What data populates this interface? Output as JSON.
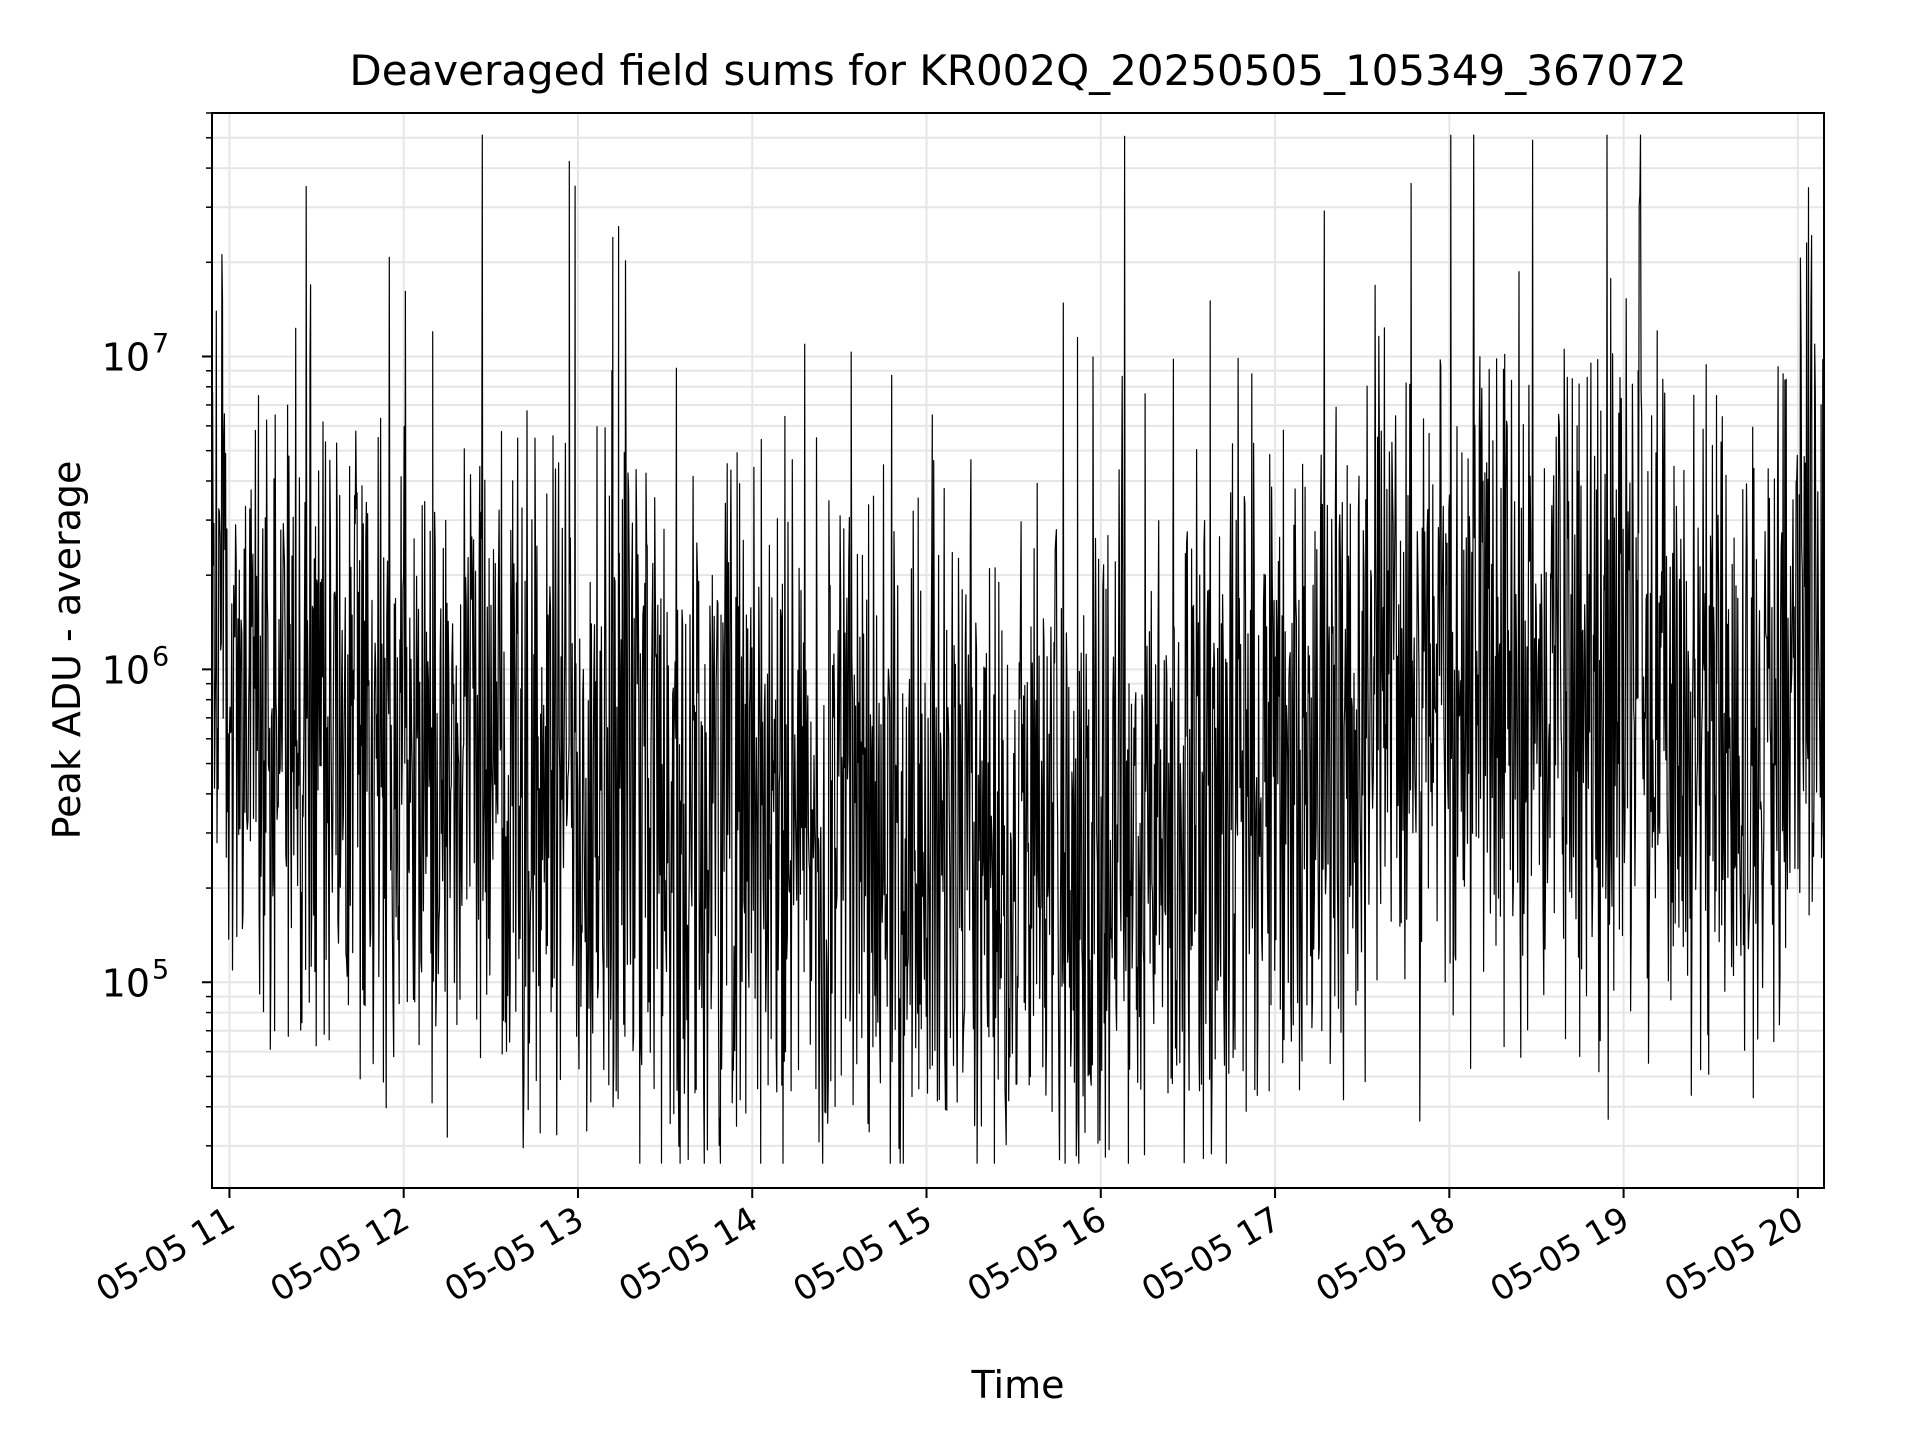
{
  "chart_data": {
    "type": "line",
    "title": "Deaveraged field sums for KR002Q_20250505_105349_367072",
    "xlabel": "Time",
    "ylabel": "Peak ADU - average",
    "yscale": "log",
    "ylim": [
      22000,
      60000000
    ],
    "xlim": [
      "2025-05-05 10:54",
      "2025-05-05 20:09"
    ],
    "grid": true,
    "line_color": "#000000",
    "x_tick_labels": [
      "05-05 11",
      "05-05 12",
      "05-05 13",
      "05-05 14",
      "05-05 15",
      "05-05 16",
      "05-05 17",
      "05-05 18",
      "05-05 19",
      "05-05 20"
    ],
    "y_tick_labels": [
      {
        "value": 100000,
        "base": "10",
        "exp": "5"
      },
      {
        "value": 1000000,
        "base": "10",
        "exp": "6"
      },
      {
        "value": 10000000,
        "base": "10",
        "exp": "7"
      }
    ],
    "series": [
      {
        "x": [
          "2025-05-05 10:54",
          "2025-05-05 11:00",
          "2025-05-05 11:15",
          "2025-05-05 11:30",
          "2025-05-05 11:45",
          "2025-05-05 12:00",
          "2025-05-05 12:30",
          "2025-05-05 13:00",
          "2025-05-05 13:30",
          "2025-05-05 14:00",
          "2025-05-05 14:30",
          "2025-05-05 15:00",
          "2025-05-05 15:30",
          "2025-05-05 16:00",
          "2025-05-05 16:30",
          "2025-05-05 17:00",
          "2025-05-05 17:30",
          "2025-05-05 18:00",
          "2025-05-05 18:30",
          "2025-05-05 19:00",
          "2025-05-05 19:30",
          "2025-05-05 19:50",
          "2025-05-05 20:00",
          "2025-05-05 20:09"
        ],
        "y": [
          1300000,
          1100000,
          800000,
          650000,
          600000,
          550000,
          450000,
          400000,
          330000,
          320000,
          300000,
          290000,
          280000,
          270000,
          300000,
          400000,
          700000,
          850000,
          850000,
          800000,
          650000,
          500000,
          1500000,
          1600000
        ],
        "peaks": [
          {
            "x": "2025-05-05 12:57",
            "y": 42000000
          },
          {
            "x": "2025-05-05 12:59",
            "y": 35000000
          },
          {
            "x": "2025-05-05 13:12",
            "y": 24000000
          },
          {
            "x": "2025-05-05 13:14",
            "y": 26000000
          },
          {
            "x": "2025-05-05 12:10",
            "y": 12000000
          },
          {
            "x": "2025-05-05 15:52",
            "y": 11500000
          },
          {
            "x": "2025-05-05 16:25",
            "y": 9800000
          },
          {
            "x": "2025-05-05 16:52",
            "y": 8800000
          },
          {
            "x": "2025-05-05 18:44",
            "y": 6000000
          },
          {
            "x": "2025-05-05 19:05",
            "y": 9000000
          },
          {
            "x": "2025-05-05 19:32",
            "y": 7500000
          },
          {
            "x": "2025-05-05 20:08",
            "y": 7000000
          },
          {
            "x": "2025-05-05 11:10",
            "y": 7500000
          },
          {
            "x": "2025-05-05 14:48",
            "y": 8700000
          },
          {
            "x": "2025-05-05 15:02",
            "y": 6500000
          }
        ],
        "troughs": [
          {
            "x": "2025-05-05 12:15",
            "y": 32000
          },
          {
            "x": "2025-05-05 12:47",
            "y": 33000
          },
          {
            "x": "2025-05-05 13:03",
            "y": 33500
          },
          {
            "x": "2025-05-05 13:33",
            "y": 38000
          },
          {
            "x": "2025-05-05 14:25",
            "y": 38500
          },
          {
            "x": "2025-05-05 15:07",
            "y": 39000
          },
          {
            "x": "2025-05-05 11:53",
            "y": 48000
          },
          {
            "x": "2025-05-05 16:34",
            "y": 45000
          },
          {
            "x": "2025-05-05 16:58",
            "y": 45000
          },
          {
            "x": "2025-05-05 17:19",
            "y": 55000
          },
          {
            "x": "2025-05-05 18:40",
            "y": 66000
          },
          {
            "x": "2025-05-05 19:29",
            "y": 68000
          }
        ]
      }
    ]
  }
}
